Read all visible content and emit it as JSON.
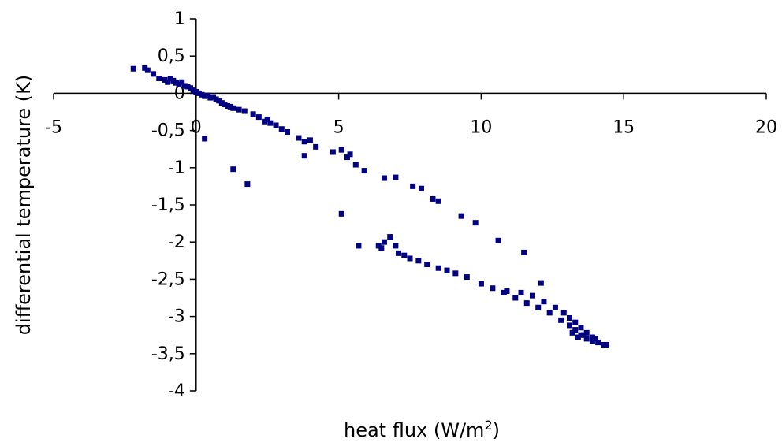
{
  "chart_data": {
    "type": "scatter",
    "title": "",
    "xlabel": "heat flux (W/m",
    "xlabel_superscript": "2",
    "xlabel_suffix": ")",
    "ylabel": "differential temperature  (K)",
    "xlim": [
      -5,
      20
    ],
    "ylim": [
      -4,
      1
    ],
    "x_ticks": [
      -5,
      0,
      5,
      10,
      15,
      20
    ],
    "x_tick_labels": [
      "-5",
      "0",
      "5",
      "10",
      "15",
      "20"
    ],
    "y_ticks": [
      1,
      0.5,
      0,
      -0.5,
      -1,
      -1.5,
      -2,
      -2.5,
      -3,
      -3.5,
      -4
    ],
    "y_tick_labels": [
      "1",
      "0,5",
      "0",
      "-0,5",
      "-1",
      "-1,5",
      "-2",
      "-2,5",
      "-3",
      "-3,5",
      "-4"
    ],
    "grid": false,
    "legend": "none",
    "marker": "square",
    "color": "#000080",
    "series": [
      {
        "values": [
          [
            -2.2,
            0.33
          ],
          [
            -1.8,
            0.34
          ],
          [
            -1.7,
            0.31
          ],
          [
            -1.5,
            0.26
          ],
          [
            -1.3,
            0.2
          ],
          [
            -1.1,
            0.18
          ],
          [
            -1.0,
            0.15
          ],
          [
            -0.9,
            0.2
          ],
          [
            -0.8,
            0.17
          ],
          [
            -0.7,
            0.14
          ],
          [
            -0.6,
            0.12
          ],
          [
            -0.5,
            0.15
          ],
          [
            -0.4,
            0.1
          ],
          [
            -0.3,
            0.09
          ],
          [
            -0.2,
            0.07
          ],
          [
            -0.1,
            0.04
          ],
          [
            0.0,
            0.02
          ],
          [
            0.1,
            0.0
          ],
          [
            0.2,
            -0.02
          ],
          [
            0.3,
            -0.04
          ],
          [
            0.4,
            -0.03
          ],
          [
            0.5,
            -0.06
          ],
          [
            0.6,
            -0.05
          ],
          [
            0.7,
            -0.08
          ],
          [
            0.8,
            -0.1
          ],
          [
            0.9,
            -0.13
          ],
          [
            1.0,
            -0.15
          ],
          [
            1.1,
            -0.17
          ],
          [
            1.2,
            -0.18
          ],
          [
            1.3,
            -0.2
          ],
          [
            1.5,
            -0.22
          ],
          [
            1.7,
            -0.24
          ],
          [
            2.0,
            -0.28
          ],
          [
            2.2,
            -0.32
          ],
          [
            2.4,
            -0.38
          ],
          [
            2.5,
            -0.35
          ],
          [
            2.6,
            -0.4
          ],
          [
            2.8,
            -0.43
          ],
          [
            3.0,
            -0.48
          ],
          [
            3.2,
            -0.52
          ],
          [
            3.6,
            -0.6
          ],
          [
            3.8,
            -0.65
          ],
          [
            4.0,
            -0.63
          ],
          [
            4.2,
            -0.72
          ],
          [
            3.8,
            -0.84
          ],
          [
            4.8,
            -0.79
          ],
          [
            5.1,
            -0.76
          ],
          [
            5.3,
            -0.86
          ],
          [
            5.4,
            -0.82
          ],
          [
            5.6,
            -0.96
          ],
          [
            5.9,
            -1.04
          ],
          [
            6.6,
            -1.14
          ],
          [
            7.0,
            -1.13
          ],
          [
            7.6,
            -1.25
          ],
          [
            7.9,
            -1.28
          ],
          [
            8.3,
            -1.42
          ],
          [
            8.5,
            -1.45
          ],
          [
            9.3,
            -1.65
          ],
          [
            9.8,
            -1.74
          ],
          [
            10.6,
            -1.98
          ],
          [
            11.5,
            -2.14
          ],
          [
            12.1,
            -2.55
          ],
          [
            0.3,
            -0.61
          ],
          [
            1.3,
            -1.02
          ],
          [
            1.8,
            -1.22
          ],
          [
            5.1,
            -1.62
          ],
          [
            5.7,
            -2.05
          ],
          [
            6.4,
            -2.05
          ],
          [
            6.5,
            -2.08
          ],
          [
            6.6,
            -2.0
          ],
          [
            6.8,
            -1.93
          ],
          [
            7.0,
            -2.05
          ],
          [
            7.1,
            -2.15
          ],
          [
            7.3,
            -2.18
          ],
          [
            7.5,
            -2.22
          ],
          [
            7.8,
            -2.25
          ],
          [
            8.1,
            -2.3
          ],
          [
            8.5,
            -2.35
          ],
          [
            8.8,
            -2.38
          ],
          [
            9.1,
            -2.42
          ],
          [
            9.5,
            -2.47
          ],
          [
            10.0,
            -2.56
          ],
          [
            10.4,
            -2.62
          ],
          [
            10.8,
            -2.68
          ],
          [
            11.2,
            -2.75
          ],
          [
            11.6,
            -2.82
          ],
          [
            12.0,
            -2.88
          ],
          [
            12.4,
            -2.95
          ],
          [
            12.8,
            -3.05
          ],
          [
            13.1,
            -3.12
          ],
          [
            13.3,
            -3.18
          ],
          [
            13.5,
            -3.25
          ],
          [
            13.7,
            -3.3
          ],
          [
            13.9,
            -3.33
          ],
          [
            14.1,
            -3.35
          ],
          [
            14.3,
            -3.38
          ],
          [
            14.4,
            -3.38
          ],
          [
            10.9,
            -2.66
          ],
          [
            11.4,
            -2.68
          ],
          [
            11.8,
            -2.72
          ],
          [
            12.2,
            -2.8
          ],
          [
            12.6,
            -2.88
          ],
          [
            12.9,
            -2.95
          ],
          [
            13.1,
            -3.02
          ],
          [
            13.3,
            -3.08
          ],
          [
            13.5,
            -3.15
          ],
          [
            13.7,
            -3.22
          ],
          [
            13.9,
            -3.28
          ],
          [
            14.0,
            -3.3
          ],
          [
            13.2,
            -3.22
          ],
          [
            13.4,
            -3.28
          ],
          [
            13.6,
            -3.25
          ]
        ]
      }
    ]
  }
}
